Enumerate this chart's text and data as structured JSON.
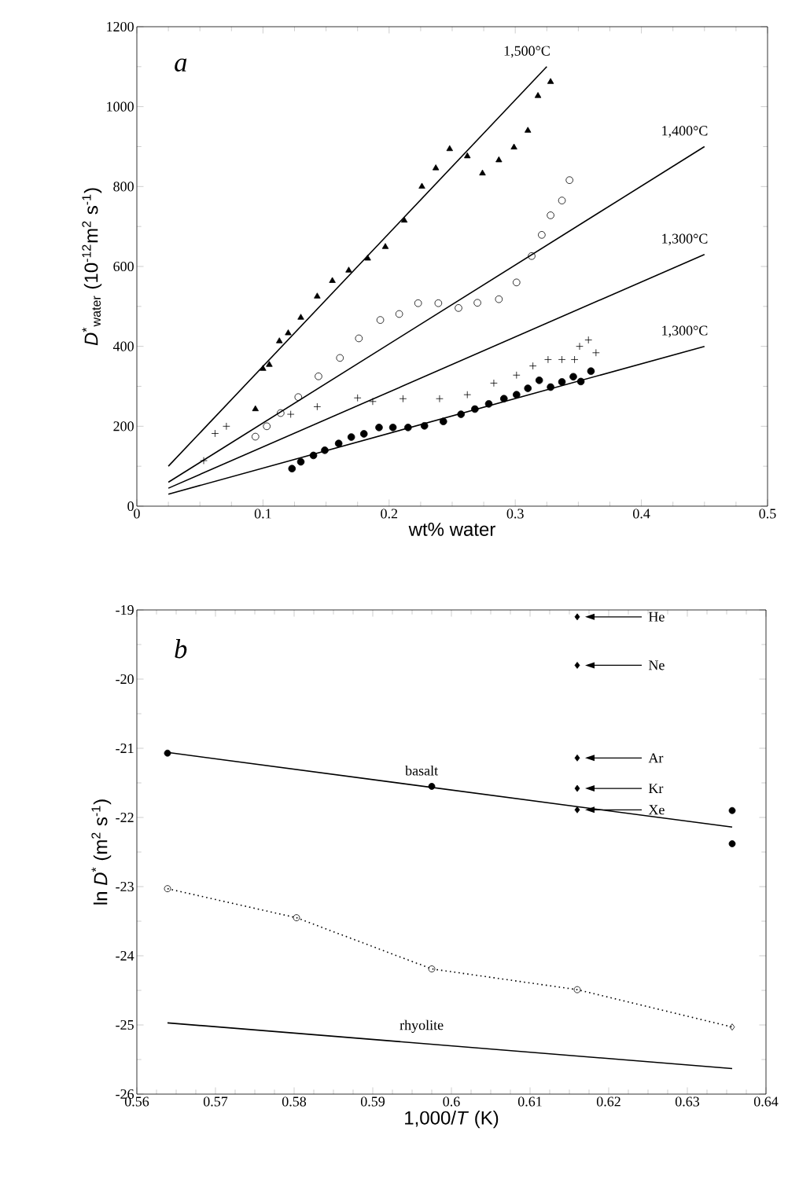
{
  "chart_data": [
    {
      "type": "scatter",
      "xlabel": "wt% water",
      "ylabel": "*D*$^{*}$$_{water}$ (10$^{-12}$m$^{2}$ s$^{-1}$)",
      "xlim": [
        0,
        0.5
      ],
      "ylim": [
        0,
        1200
      ],
      "xticks": [
        0,
        0.1,
        0.2,
        0.3,
        0.4,
        0.5
      ],
      "yticks": [
        0,
        200,
        400,
        600,
        800,
        1000,
        1200
      ],
      "annotations": [
        "*a*"
      ],
      "series": [
        {
          "name": "1,500°C",
          "type": "line",
          "line_style": "solid",
          "marker": "none",
          "color": "#000000",
          "x": [
            0.025,
            0.325
          ],
          "values": [
            100,
            1100
          ]
        },
        {
          "name": "1,400°C",
          "type": "line",
          "line_style": "solid",
          "marker": "none",
          "color": "#000000",
          "x": [
            0.025,
            0.45
          ],
          "values": [
            60,
            900
          ]
        },
        {
          "name": "1,300°C",
          "type": "line",
          "line_style": "solid",
          "marker": "none",
          "color": "#000000",
          "x": [
            0.025,
            0.45
          ],
          "values": [
            45,
            630
          ]
        },
        {
          "name": "1,300°C",
          "type": "line",
          "line_style": "solid",
          "marker": "none",
          "color": "#000000",
          "x": [
            0.025,
            0.45
          ],
          "values": [
            30,
            400
          ]
        },
        {
          "marker": "triangle",
          "color": "#000000",
          "x": [
            0.094,
            0.1,
            0.105,
            0.113,
            0.12,
            0.13,
            0.143,
            0.155,
            0.168,
            0.183,
            0.197,
            0.212,
            0.226,
            0.237,
            0.248,
            0.262,
            0.274,
            0.287,
            0.299,
            0.31,
            0.318,
            0.328
          ],
          "values": [
            243,
            344,
            354,
            413,
            433,
            472,
            525,
            564,
            590,
            620,
            649,
            715,
            800,
            846,
            894,
            876,
            833,
            866,
            898,
            940,
            1027,
            1062
          ]
        },
        {
          "marker": "circle-open",
          "color": "#000000",
          "x": [
            0.094,
            0.103,
            0.114,
            0.128,
            0.144,
            0.161,
            0.176,
            0.193,
            0.208,
            0.223,
            0.239,
            0.255,
            0.27,
            0.287,
            0.301,
            0.313,
            0.321,
            0.328,
            0.337,
            0.343
          ],
          "values": [
            174,
            200,
            233,
            273,
            325,
            371,
            420,
            466,
            481,
            508,
            508,
            496,
            509,
            518,
            560,
            626,
            679,
            728,
            765,
            816
          ]
        },
        {
          "marker": "cross",
          "color": "#000000",
          "x": [
            0.053,
            0.062,
            0.071,
            0.122,
            0.143,
            0.175,
            0.187,
            0.211,
            0.24,
            0.262,
            0.283,
            0.301,
            0.314,
            0.326,
            0.337,
            0.347,
            0.351,
            0.358,
            0.364
          ],
          "values": [
            114,
            182,
            200,
            230,
            249,
            271,
            262,
            269,
            269,
            279,
            308,
            328,
            351,
            367,
            367,
            367,
            400,
            416,
            384
          ]
        },
        {
          "marker": "circle",
          "color": "#000000",
          "x": [
            0.123,
            0.13,
            0.14,
            0.149,
            0.16,
            0.17,
            0.18,
            0.192,
            0.203,
            0.215,
            0.228,
            0.243,
            0.257,
            0.268,
            0.279,
            0.291,
            0.301,
            0.31,
            0.319,
            0.328,
            0.337,
            0.346,
            0.352,
            0.36
          ],
          "values": [
            94,
            111,
            127,
            140,
            157,
            173,
            181,
            197,
            197,
            197,
            201,
            212,
            230,
            243,
            256,
            269,
            279,
            295,
            315,
            298,
            311,
            324,
            312,
            338
          ]
        }
      ]
    },
    {
      "type": "scatter",
      "xlabel": "1,000/*T* (K)",
      "ylabel": "ln *D*$^{*}$ (m$^{2}$ s$^{-1}$)",
      "xlim": [
        0.56,
        0.64
      ],
      "ylim": [
        -26,
        -19
      ],
      "xticks": [
        0.56,
        0.57,
        0.58,
        0.59,
        0.6,
        0.61,
        0.62,
        0.63,
        0.64
      ],
      "yticks": [
        -26,
        -25,
        -24,
        -23,
        -22,
        -21,
        -20,
        -19
      ],
      "annotations": [
        "*b*",
        "He",
        "Ne",
        "Ar",
        "Kr",
        "Xe"
      ],
      "series": [
        {
          "name": "basalt",
          "type": "line",
          "line_style": "solid",
          "marker": "none",
          "color": "#000000",
          "x": [
            0.5639,
            0.6357
          ],
          "values": [
            -21.06,
            -22.14
          ]
        },
        {
          "name": "rhyolite",
          "type": "line",
          "line_style": "solid",
          "marker": "none",
          "color": "#000000",
          "x": [
            0.5639,
            0.6357
          ],
          "values": [
            -24.97,
            -25.63
          ]
        },
        {
          "type": "line",
          "line_style": "dotted",
          "marker": "none",
          "color": "#000000",
          "x": [
            0.5639,
            0.5803,
            0.5975,
            0.616,
            0.6357
          ],
          "values": [
            -23.03,
            -23.45,
            -24.19,
            -24.49,
            -25.03
          ]
        },
        {
          "marker": "circle",
          "color": "#000000",
          "x": [
            0.5639,
            0.5975,
            0.6357,
            0.6357
          ],
          "values": [
            -21.07,
            -21.55,
            -21.9,
            -22.38
          ]
        },
        {
          "marker": "circle-open",
          "color": "#000000",
          "x": [
            0.5639,
            0.5803,
            0.5975,
            0.616
          ],
          "values": [
            -23.03,
            -23.45,
            -24.19,
            -24.49
          ]
        },
        {
          "marker": "diamond-open",
          "color": "#000000",
          "x": [
            0.6357
          ],
          "values": [
            -25.03
          ]
        },
        {
          "marker": "diamond",
          "color": "#000000",
          "x": [
            0.616,
            0.616,
            0.616,
            0.616,
            0.616
          ],
          "values": [
            -19.1,
            -19.8,
            -21.14,
            -21.58,
            -21.89
          ]
        }
      ]
    }
  ]
}
